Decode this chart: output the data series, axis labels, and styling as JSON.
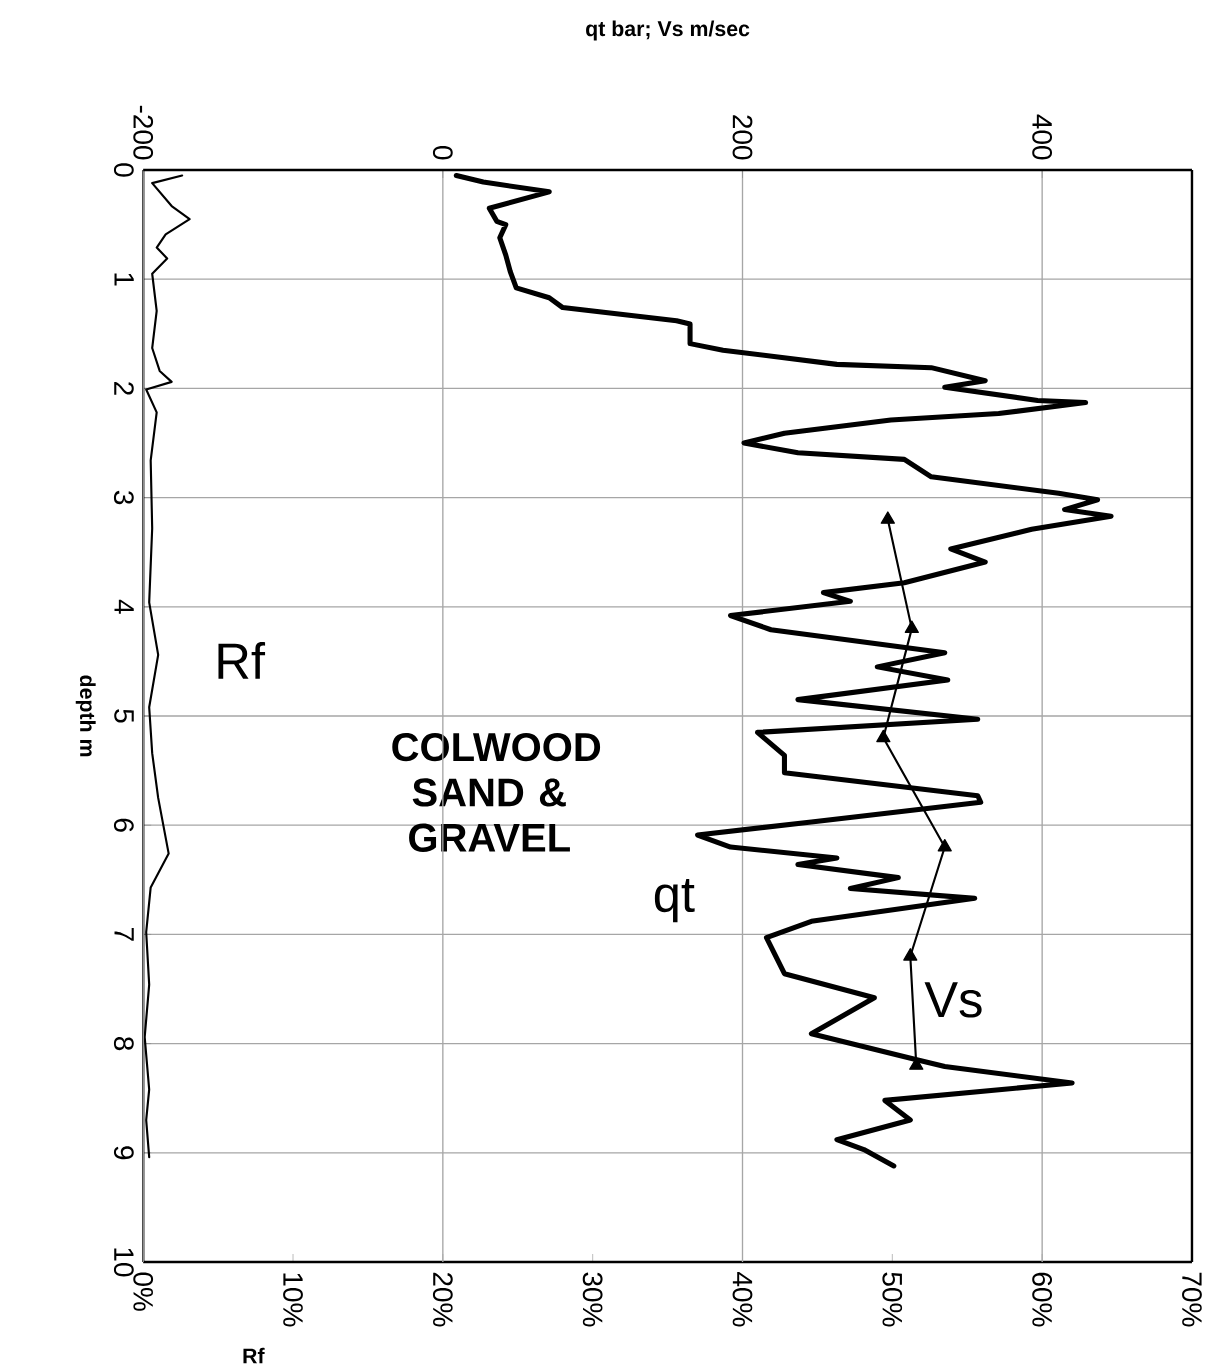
{
  "chart_data": {
    "type": "line",
    "x2label": "qt bar; Vs m/sec",
    "xlabel": "Rf",
    "ylabel": "depth m",
    "xlim": [
      0,
      70
    ],
    "xticks": [
      {
        "value": 0,
        "label": "0%"
      },
      {
        "value": 10,
        "label": "10%"
      },
      {
        "value": 20,
        "label": "20%"
      },
      {
        "value": 30,
        "label": "30%"
      },
      {
        "value": 40,
        "label": "40%"
      },
      {
        "value": 50,
        "label": "50%"
      },
      {
        "value": 60,
        "label": "60%"
      },
      {
        "value": 70,
        "label": "70%"
      }
    ],
    "x2lim": [
      -200,
      500
    ],
    "x2ticks": [
      -200,
      0,
      200,
      400
    ],
    "ylim": [
      10,
      0
    ],
    "yticks": [
      0,
      1,
      2,
      3,
      4,
      5,
      6,
      7,
      8,
      9,
      10
    ],
    "grid": true,
    "annotations": [
      "COLWOOD SAND & GRAVEL"
    ],
    "series": [
      {
        "name": "qt",
        "color": "#000000",
        "axis": "x2",
        "x": [
          9,
          27,
          71,
          31,
          36,
          42,
          38,
          42,
          45,
          49,
          71,
          80,
          156,
          165,
          165,
          187,
          263,
          326,
          362,
          335,
          397,
          429,
          371,
          299,
          228,
          201,
          237,
          308,
          326,
          411,
          437,
          415,
          446,
          393,
          339,
          362,
          308,
          254,
          272,
          192,
          219,
          335,
          290,
          337,
          237,
          357,
          210,
          228,
          228,
          357,
          359,
          246,
          170,
          192,
          263,
          237,
          304,
          272,
          355,
          246,
          216,
          228,
          288,
          246,
          317,
          335,
          420,
          295,
          312,
          263,
          281,
          301
        ],
        "values": [
          0.05,
          0.11,
          0.2,
          0.35,
          0.47,
          0.5,
          0.62,
          0.78,
          0.93,
          1.08,
          1.17,
          1.26,
          1.38,
          1.41,
          1.59,
          1.65,
          1.78,
          1.81,
          1.93,
          1.99,
          2.11,
          2.13,
          2.23,
          2.29,
          2.41,
          2.5,
          2.59,
          2.65,
          2.81,
          2.96,
          3.02,
          3.11,
          3.17,
          3.29,
          3.47,
          3.59,
          3.78,
          3.87,
          3.95,
          4.08,
          4.21,
          4.42,
          4.55,
          4.67,
          4.85,
          5.03,
          5.15,
          5.36,
          5.52,
          5.73,
          5.79,
          5.97,
          6.09,
          6.2,
          6.3,
          6.36,
          6.48,
          6.58,
          6.67,
          6.88,
          7.03,
          7.36,
          7.58,
          7.91,
          8.15,
          8.21,
          8.36,
          8.52,
          8.7,
          8.88,
          8.97,
          9.12
        ]
      },
      {
        "name": "Vs",
        "color": "#000000",
        "axis": "x2",
        "marker": "triangle",
        "x": [
          297,
          313,
          294,
          335,
          312,
          316
        ],
        "values": [
          3.2,
          4.2,
          5.2,
          6.2,
          7.2,
          8.2
        ]
      },
      {
        "name": "Rf",
        "color": "#000000",
        "x": [
          2.6,
          0.6,
          1.9,
          3.1,
          1.5,
          0.9,
          1.6,
          0.6,
          0.9,
          0.6,
          1.1,
          1.9,
          0.2,
          0.9,
          0.5,
          0.6,
          0.4,
          1.0,
          0.4,
          0.6,
          1.0,
          1.7,
          0.5,
          0.2,
          0.4,
          0.1,
          0.4,
          0.2,
          0.4
        ],
        "values": [
          0.05,
          0.12,
          0.33,
          0.45,
          0.59,
          0.71,
          0.81,
          0.95,
          1.29,
          1.63,
          1.84,
          1.94,
          2.01,
          2.22,
          2.66,
          3.28,
          3.96,
          4.44,
          4.92,
          5.34,
          5.75,
          6.26,
          6.57,
          6.98,
          7.46,
          7.94,
          8.42,
          8.7,
          9.04
        ]
      }
    ]
  }
}
